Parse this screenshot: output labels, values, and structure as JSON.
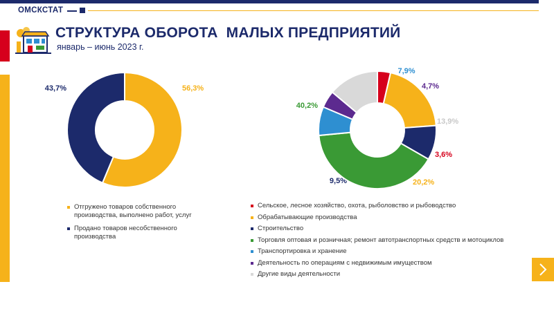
{
  "header": {
    "brand": "ОМСКСТАТ",
    "title": "СТРУКТУРА ОБОРОТА  МАЛЫХ ПРЕДПРИЯТИЙ",
    "subtitle": "январь – июнь 2023 г."
  },
  "chart_data": [
    {
      "type": "pie",
      "donut": true,
      "labels": [
        "Отгружено товаров собственного производства, выполнено работ, услуг",
        "Продано товаров несобственного производства"
      ],
      "values": [
        56.3,
        43.7
      ],
      "value_labels": [
        "56,3%",
        "43,7%"
      ],
      "colors": [
        "#f6b21a",
        "#1c2a6b"
      ],
      "legend": "bottom"
    },
    {
      "type": "pie",
      "donut": true,
      "labels": [
        "Сельское, лесное хозяйство, охота, рыболовство и рыбоводство",
        "Обрабатывающие производства",
        "Строительство",
        "Торговля оптовая и розничная;  ремонт автотранспортных  средств и мотоциклов",
        "Транспортировка  и хранение",
        "Деятельность по операциям  с недвижимым  имуществом",
        "Другие виды деятельности"
      ],
      "values": [
        3.6,
        20.2,
        9.5,
        40.2,
        7.9,
        4.7,
        13.9
      ],
      "value_labels": [
        "3,6%",
        "20,2%",
        "9,5%",
        "40,2%",
        "7,9%",
        "4,7%",
        "13,9%"
      ],
      "colors": [
        "#d6001c",
        "#f6b21a",
        "#1c2a6b",
        "#3a9a35",
        "#2e8fd1",
        "#5c2a8f",
        "#d9d9d9"
      ],
      "legend": "bottom"
    }
  ],
  "icons": {
    "logo": "shop-building-icon",
    "next": "chevron-right-icon"
  }
}
